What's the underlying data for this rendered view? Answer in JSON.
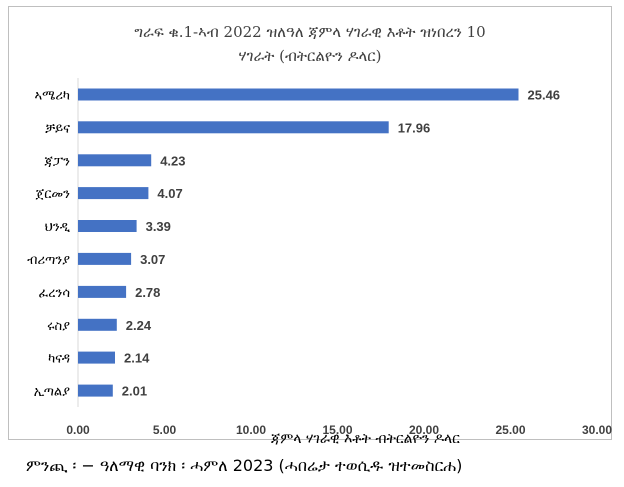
{
  "chart_data": {
    "type": "bar",
    "orientation": "horizontal",
    "title": "ግራፍ ቁ.1-ኣብ 2022 ዝለዓለ ጃምላ ሃገራዊ እቶት ዝነበረን 10",
    "subtitle": "ሃገራት (ብትርልዮን ዶላር)",
    "categories": [
      "ኣሜሪካ",
      "ቻይና",
      "ጃፓን",
      "ጀርመን",
      "ህንዲ",
      "ብሪጣንያ",
      "ፈረንሳ",
      "ሩስያ",
      "ካናዳ",
      "ኢጣልያ"
    ],
    "values": [
      25.46,
      17.96,
      4.23,
      4.07,
      3.39,
      3.07,
      2.78,
      2.24,
      2.14,
      2.01
    ],
    "value_labels": [
      "25.46",
      "17.96",
      "4.23",
      "4.07",
      "3.39",
      "3.07",
      "2.78",
      "2.24",
      "2.14",
      "2.01"
    ],
    "xlabel": "ጃምላ ሃገራዊ እቶት ብትርልዮን ዶላር",
    "ylabel": "",
    "xlim": [
      0,
      30
    ],
    "xticks": [
      "0.00",
      "5.00",
      "10.00",
      "15.00",
      "20.00",
      "25.00",
      "30.00"
    ],
    "bar_color": "#4472c4",
    "grid": false,
    "legend": "none"
  },
  "source": "ምንጪ ፡ − ዓለማዊ ባንክ ፡ ሓምለ 2023 (ሓበሬታ ተወሲዱ ዝተመስርሐ)"
}
